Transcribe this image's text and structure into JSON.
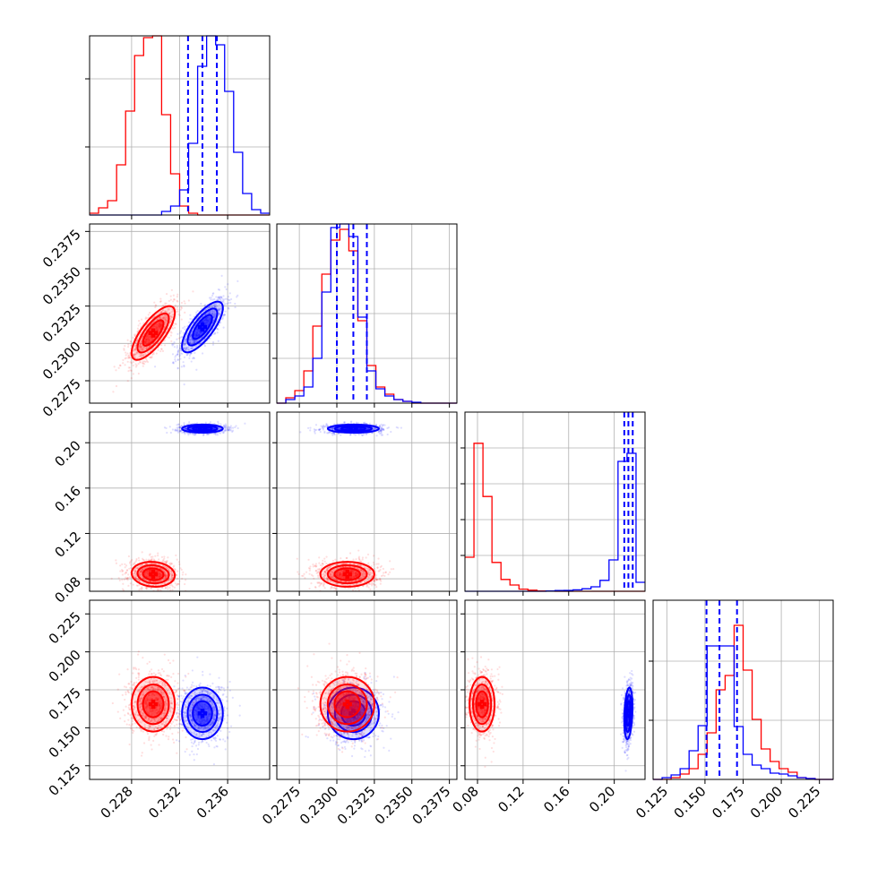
{
  "chart_data": {
    "type": "corner",
    "title": "",
    "colors": {
      "blue": "#0000ff",
      "red": "#ff0000"
    },
    "grid": true,
    "dimensions": [
      {
        "range": [
          0.2245,
          0.2395
        ],
        "xtick_labels": [
          "0.228",
          "0.232",
          "0.236"
        ],
        "xtick_values": [
          0.228,
          0.232,
          0.236
        ],
        "ytick_labels": [],
        "ytick_values": []
      },
      {
        "range": [
          0.226,
          0.238
        ],
        "xtick_labels": [
          "0.2275",
          "0.2300",
          "0.2325",
          "0.2350",
          "0.2375"
        ],
        "xtick_values": [
          0.2275,
          0.23,
          0.2325,
          0.235,
          0.2375
        ],
        "ytick_labels": [
          "0.2275",
          "0.2300",
          "0.2325",
          "0.2350",
          "0.2375"
        ],
        "ytick_values": [
          0.2275,
          0.23,
          0.2325,
          0.235,
          0.2375
        ]
      },
      {
        "range": [
          0.069,
          0.227
        ],
        "xtick_labels": [
          "0.08",
          "0.12",
          "0.16",
          "0.20"
        ],
        "xtick_values": [
          0.08,
          0.12,
          0.16,
          0.2
        ],
        "ytick_labels": [
          "0.08",
          "0.12",
          "0.16",
          "0.20"
        ],
        "ytick_values": [
          0.08,
          0.12,
          0.16,
          0.2
        ]
      },
      {
        "range": [
          0.116,
          0.234
        ],
        "xtick_labels": [
          "0.125",
          "0.150",
          "0.175",
          "0.200",
          "0.225"
        ],
        "xtick_values": [
          0.125,
          0.15,
          0.175,
          0.2,
          0.225
        ],
        "ytick_labels": [
          "0.125",
          "0.150",
          "0.175",
          "0.200",
          "0.225"
        ],
        "ytick_values": [
          0.125,
          0.15,
          0.175,
          0.2,
          0.225
        ]
      }
    ],
    "series": [
      {
        "color": "#0000ff",
        "means": [
          0.2339,
          0.2311,
          0.2124,
          0.1595
        ],
        "stds": [
          0.00085,
          0.00085,
          0.0018,
          0.0085
        ],
        "quantiles": [
          [
            0.2327,
            0.2339,
            0.2351
          ],
          [
            0.23,
            0.2311,
            0.232
          ],
          [
            0.2088,
            0.2124,
            0.2162
          ],
          [
            0.151,
            0.1595,
            0.171
          ]
        ],
        "correlations": [
          [
            0,
            1,
            0.75
          ],
          [
            0,
            2,
            0.0
          ],
          [
            0,
            3,
            0.0
          ],
          [
            1,
            2,
            0.0
          ],
          [
            1,
            3,
            0.0
          ],
          [
            2,
            3,
            0.25
          ]
        ]
      },
      {
        "color": "#ff0000",
        "means": [
          0.2298,
          0.2307,
          0.084,
          0.1655
        ],
        "stds": [
          0.0009,
          0.0009,
          0.0055,
          0.009
        ],
        "quantiles": [],
        "correlations": [
          [
            0,
            1,
            0.75
          ],
          [
            0,
            2,
            -0.1
          ],
          [
            0,
            3,
            0.0
          ],
          [
            1,
            2,
            0.0
          ],
          [
            1,
            3,
            0.0
          ],
          [
            2,
            3,
            0.0
          ]
        ]
      }
    ],
    "histograms": [
      {
        "dim": 0,
        "bin_start": 0.2245,
        "bin_width": 0.00075,
        "ytick_values": [
          0.38,
          0.76
        ],
        "blue": [
          0,
          0,
          0,
          0,
          0,
          0,
          0,
          0,
          0.02,
          0.05,
          0.14,
          0.4,
          0.83,
          1.0,
          0.95,
          0.69,
          0.35,
          0.12,
          0.03,
          0.01
        ],
        "red": [
          0.01,
          0.04,
          0.08,
          0.28,
          0.58,
          0.89,
          0.99,
          1.0,
          0.56,
          0.23,
          0.05,
          0.01,
          0,
          0,
          0,
          0,
          0,
          0,
          0,
          0
        ]
      },
      {
        "dim": 1,
        "bin_start": 0.226,
        "bin_width": 0.0006,
        "ytick_values": [
          0.25,
          0.5,
          0.75
        ],
        "blue": [
          0,
          0.02,
          0.04,
          0.09,
          0.25,
          0.62,
          0.98,
          1.0,
          0.93,
          0.48,
          0.18,
          0.08,
          0.04,
          0.02,
          0.01,
          0.005,
          0,
          0,
          0,
          0
        ],
        "red": [
          0,
          0.03,
          0.07,
          0.18,
          0.43,
          0.72,
          0.91,
          0.97,
          0.85,
          0.46,
          0.21,
          0.09,
          0.05,
          0.02,
          0.01,
          0,
          0,
          0,
          0,
          0
        ]
      },
      {
        "dim": 2,
        "bin_start": 0.069,
        "bin_width": 0.0079,
        "ytick_values": [
          0.2,
          0.4,
          0.6,
          0.8
        ],
        "blue": [
          0,
          0,
          0,
          0,
          0,
          0,
          0,
          0,
          0,
          0.002,
          0.004,
          0.005,
          0.008,
          0.014,
          0.025,
          0.061,
          0.175,
          0.725,
          0.77,
          0.05
        ],
        "red": [
          0.19,
          0.826,
          0.529,
          0.161,
          0.066,
          0.035,
          0.012,
          0.006,
          0.002,
          0.001,
          0,
          0,
          0,
          0,
          0,
          0,
          0,
          0,
          0,
          0
        ]
      },
      {
        "dim": 3,
        "bin_start": 0.116,
        "bin_width": 0.0059,
        "ytick_values": [
          0.33,
          0.66
        ],
        "blue": [
          0,
          0.01,
          0.025,
          0.06,
          0.16,
          0.3,
          0.745,
          0.745,
          0.745,
          0.295,
          0.14,
          0.08,
          0.06,
          0.035,
          0.03,
          0.02,
          0.01,
          0.005,
          0,
          0
        ],
        "red": [
          0,
          0,
          0.01,
          0.03,
          0.06,
          0.14,
          0.26,
          0.5,
          0.58,
          0.86,
          0.61,
          0.335,
          0.17,
          0.1,
          0.06,
          0.04,
          0.01,
          0.005,
          0,
          0
        ]
      }
    ]
  }
}
